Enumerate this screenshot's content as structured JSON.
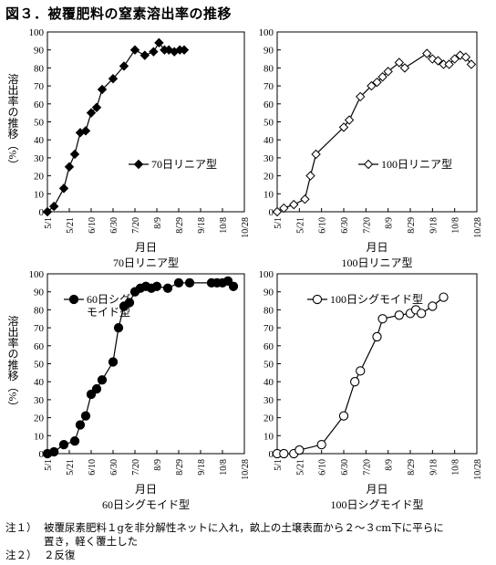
{
  "figure_title": "図３．被覆肥料の窒素溶出率の推移",
  "notes": [
    {
      "label": "注１）",
      "text": "被覆尿素肥料１gを非分解性ネットに入れ，畝上の土壌表面から２～３cm下に平らに",
      "cont": "置き，軽く覆土した"
    },
    {
      "label": "注２）",
      "text": "２反復"
    }
  ],
  "chart_data": [
    {
      "type": "line",
      "caption": "70日リニア型",
      "xlabel": "月日",
      "ylabel": "溶出率の推移（%）",
      "legend": {
        "text": "70日リニア型",
        "placement": "center-right"
      },
      "marker": "diamond",
      "fill": "#000000",
      "x_ticks": [
        "5/1",
        "5/21",
        "6/10",
        "6/30",
        "7/20",
        "8/9",
        "8/29",
        "9/18",
        "10/8",
        "10/28"
      ],
      "xlim": [
        0,
        180
      ],
      "ylim": [
        0,
        100
      ],
      "y_ticks": [
        0,
        10,
        20,
        30,
        40,
        50,
        60,
        70,
        80,
        90,
        100
      ],
      "series": [
        {
          "x": [
            0,
            6,
            15,
            20,
            25,
            30,
            35,
            40,
            45,
            50,
            60,
            70,
            80,
            89,
            97,
            102,
            107,
            111,
            116,
            121,
            125
          ],
          "y": [
            0,
            3,
            13,
            25,
            32,
            44,
            45,
            55,
            58,
            68,
            74,
            81,
            90,
            87,
            89,
            94,
            90,
            90,
            89,
            90,
            90
          ]
        }
      ]
    },
    {
      "type": "line",
      "caption": "100日リニア型",
      "xlabel": "月日",
      "ylabel": "",
      "legend": {
        "text": "100日リニア型",
        "placement": "center-right"
      },
      "marker": "diamond",
      "fill": "#ffffff",
      "x_ticks": [
        "5/1",
        "5/21",
        "6/10",
        "6/30",
        "7/20",
        "8/9",
        "8/29",
        "9/18",
        "10/8",
        "10/28"
      ],
      "xlim": [
        0,
        180
      ],
      "ylim": [
        0,
        100
      ],
      "y_ticks": [
        0,
        10,
        20,
        30,
        40,
        50,
        60,
        70,
        80,
        90,
        100
      ],
      "series": [
        {
          "x": [
            0,
            6,
            15,
            25,
            30,
            35,
            60,
            65,
            75,
            85,
            90,
            95,
            100,
            110,
            115,
            135,
            140,
            145,
            150,
            155,
            160,
            165,
            170,
            175
          ],
          "y": [
            0,
            2,
            4,
            7,
            20,
            32,
            47,
            51,
            64,
            70,
            72,
            75,
            78,
            83,
            80,
            88,
            85,
            84,
            82,
            82,
            85,
            87,
            86,
            82
          ]
        }
      ]
    },
    {
      "type": "line",
      "caption": "60日シグモイド型",
      "xlabel": "月日",
      "ylabel": "溶出率の推移（%）",
      "legend": {
        "text": "60日シグ\nモイド型",
        "placement": "top-left"
      },
      "marker": "circle",
      "fill": "#000000",
      "x_ticks": [
        "5/1",
        "5/21",
        "6/10",
        "6/30",
        "7/20",
        "8/9",
        "8/29",
        "9/18",
        "10/8",
        "10/28"
      ],
      "xlim": [
        0,
        180
      ],
      "ylim": [
        0,
        100
      ],
      "y_ticks": [
        0,
        10,
        20,
        30,
        40,
        50,
        60,
        70,
        80,
        90,
        100
      ],
      "series": [
        {
          "x": [
            0,
            6,
            15,
            25,
            30,
            35,
            40,
            45,
            50,
            60,
            65,
            70,
            75,
            80,
            85,
            90,
            95,
            100,
            110,
            120,
            130,
            150,
            155,
            160,
            165,
            170
          ],
          "y": [
            0,
            1,
            5,
            7,
            16,
            21,
            33,
            36,
            41,
            51,
            70,
            82,
            84,
            90,
            92,
            93,
            92,
            93,
            92,
            95,
            95,
            95,
            95,
            95,
            96,
            93
          ]
        }
      ]
    },
    {
      "type": "line",
      "caption": "100日シグモイド型",
      "xlabel": "月日",
      "ylabel": "",
      "legend": {
        "text": "100日シグモイド型",
        "placement": "top-center"
      },
      "marker": "circle",
      "fill": "#ffffff",
      "x_ticks": [
        "5/1",
        "5/21",
        "6/10",
        "6/30",
        "7/20",
        "8/9",
        "8/29",
        "9/18",
        "10/8",
        "10/28"
      ],
      "xlim": [
        0,
        180
      ],
      "ylim": [
        0,
        100
      ],
      "y_ticks": [
        0,
        10,
        20,
        30,
        40,
        50,
        60,
        70,
        80,
        90,
        100
      ],
      "series": [
        {
          "x": [
            0,
            6,
            15,
            20,
            40,
            60,
            70,
            75,
            90,
            95,
            110,
            120,
            125,
            130,
            140,
            150
          ],
          "y": [
            0,
            0,
            0,
            2,
            5,
            21,
            40,
            46,
            65,
            75,
            77,
            78,
            80,
            78,
            82,
            87
          ]
        }
      ]
    }
  ]
}
